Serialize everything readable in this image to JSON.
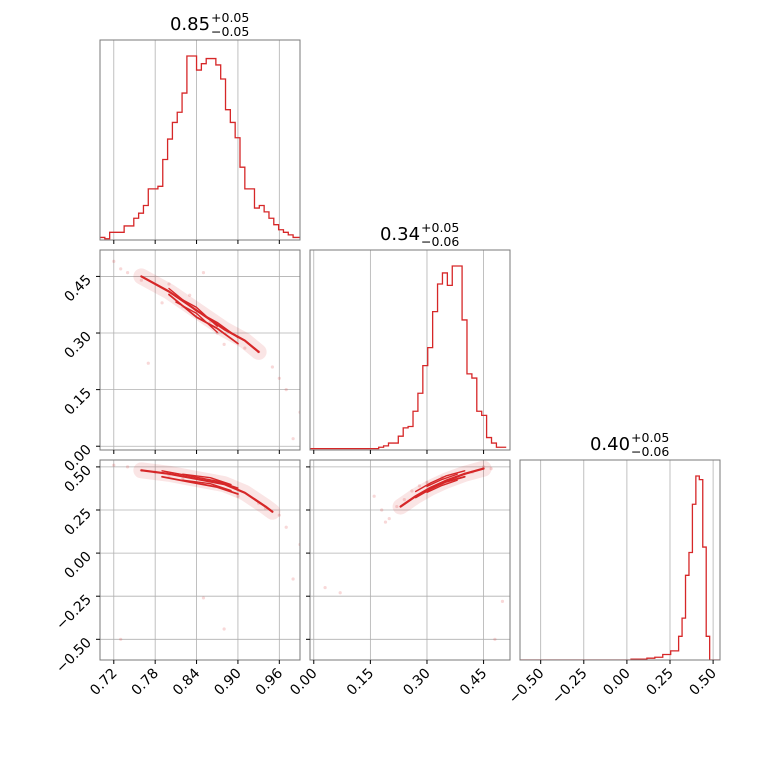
{
  "chart_data": {
    "type": "corner",
    "color": "#d62728",
    "grid": true,
    "parameters": [
      "",
      "",
      ""
    ],
    "titles": [
      {
        "value": "0.85",
        "plus": "+0.05",
        "minus": "−0.05"
      },
      {
        "value": "0.34",
        "plus": "+0.05",
        "minus": "−0.06"
      },
      {
        "value": "0.40",
        "plus": "+0.05",
        "minus": "−0.06"
      }
    ],
    "ranges": [
      [
        0.7,
        0.99
      ],
      [
        -0.01,
        0.52
      ],
      [
        -0.62,
        0.54
      ]
    ],
    "ticks": [
      [
        0.72,
        0.78,
        0.84,
        0.9,
        0.96
      ],
      [
        0.0,
        0.15,
        0.3,
        0.45
      ],
      [
        -0.5,
        -0.25,
        0.0,
        0.25,
        0.5
      ]
    ],
    "tick_labels": [
      [
        "0.72",
        "0.78",
        "0.84",
        "0.90",
        "0.96"
      ],
      [
        "0.00",
        "0.15",
        "0.30",
        "0.45"
      ],
      [
        "−0.50",
        "−0.25",
        "0.00",
        "0.25",
        "0.50"
      ]
    ],
    "histograms": [
      {
        "bin_edges": [
          0.7,
          0.707,
          0.714,
          0.721,
          0.728,
          0.735,
          0.742,
          0.749,
          0.756,
          0.763,
          0.77,
          0.777,
          0.784,
          0.791,
          0.798,
          0.805,
          0.812,
          0.819,
          0.826,
          0.833,
          0.84,
          0.847,
          0.854,
          0.861,
          0.868,
          0.875,
          0.882,
          0.889,
          0.896,
          0.903,
          0.91,
          0.917,
          0.924,
          0.931,
          0.938,
          0.945,
          0.952,
          0.959,
          0.966,
          0.973,
          0.98,
          0.99
        ],
        "counts": [
          2,
          1,
          6,
          6,
          6,
          11,
          11,
          17,
          21,
          27,
          40,
          40,
          42,
          63,
          79,
          92,
          100,
          115,
          144,
          144,
          133,
          138,
          142,
          142,
          137,
          126,
          102,
          92,
          80,
          57,
          40,
          40,
          25,
          27,
          22,
          17,
          12,
          8,
          6,
          4,
          2
        ]
      },
      {
        "bin_edges": [
          -0.01,
          0.003,
          0.016,
          0.029,
          0.042,
          0.055,
          0.068,
          0.081,
          0.094,
          0.107,
          0.12,
          0.133,
          0.146,
          0.159,
          0.172,
          0.185,
          0.198,
          0.211,
          0.224,
          0.237,
          0.25,
          0.263,
          0.276,
          0.289,
          0.302,
          0.315,
          0.328,
          0.341,
          0.354,
          0.367,
          0.38,
          0.393,
          0.406,
          0.419,
          0.432,
          0.445,
          0.458,
          0.471,
          0.484,
          0.497,
          0.51
        ],
        "counts": [
          1,
          1,
          1,
          1,
          1,
          1,
          1,
          1,
          1,
          1,
          1,
          1,
          1,
          1,
          2,
          3,
          5,
          5,
          10,
          16,
          17,
          28,
          41,
          61,
          74,
          100,
          120,
          128,
          119,
          133,
          133,
          94,
          55,
          52,
          28,
          25,
          9,
          5,
          2,
          2
        ]
      },
      {
        "bin_edges": [
          -0.62,
          -0.574,
          -0.528,
          -0.482,
          -0.436,
          -0.39,
          -0.344,
          -0.298,
          -0.252,
          -0.206,
          -0.16,
          -0.114,
          -0.068,
          -0.022,
          0.024,
          0.07,
          0.116,
          0.162,
          0.208,
          0.254,
          0.3,
          0.32,
          0.34,
          0.36,
          0.38,
          0.4,
          0.42,
          0.44,
          0.46,
          0.48,
          0.5,
          0.52,
          0.54
        ],
        "counts": [
          0,
          0,
          0,
          0,
          0,
          0,
          0,
          0,
          0,
          0,
          0,
          0,
          0,
          0,
          1,
          1,
          2,
          3,
          6,
          10,
          26,
          46,
          93,
          118,
          171,
          202,
          198,
          124,
          26,
          0,
          0,
          0
        ]
      }
    ],
    "scatter_points": [
      {
        "pair": [
          0,
          1
        ],
        "points": [
          [
            0.72,
            0.49
          ],
          [
            0.73,
            0.47
          ],
          [
            0.76,
            0.44
          ],
          [
            0.77,
            0.22
          ],
          [
            0.8,
            0.43
          ],
          [
            0.82,
            0.37
          ],
          [
            0.83,
            0.4
          ],
          [
            0.85,
            0.46
          ],
          [
            0.86,
            0.33
          ],
          [
            0.88,
            0.27
          ],
          [
            0.91,
            0.26
          ],
          [
            0.93,
            0.25
          ],
          [
            0.95,
            0.21
          ],
          [
            0.96,
            0.18
          ],
          [
            0.97,
            0.15
          ],
          [
            0.98,
            0.02
          ],
          [
            0.99,
            0.09
          ],
          [
            0.74,
            0.46
          ],
          [
            0.79,
            0.38
          ],
          [
            0.87,
            0.3
          ]
        ]
      },
      {
        "pair": [
          0,
          2
        ],
        "points": [
          [
            0.72,
            0.51
          ],
          [
            0.74,
            0.5
          ],
          [
            0.76,
            0.48
          ],
          [
            0.78,
            0.47
          ],
          [
            0.8,
            0.45
          ],
          [
            0.85,
            -0.26
          ],
          [
            0.88,
            -0.44
          ],
          [
            0.9,
            0.33
          ],
          [
            0.93,
            0.29
          ],
          [
            0.96,
            0.22
          ],
          [
            0.97,
            0.15
          ],
          [
            0.98,
            -0.15
          ],
          [
            0.99,
            0.05
          ],
          [
            0.73,
            -0.5
          ],
          [
            0.94,
            0.26
          ],
          [
            0.82,
            0.43
          ]
        ]
      },
      {
        "pair": [
          1,
          2
        ],
        "points": [
          [
            0.03,
            -0.2
          ],
          [
            0.07,
            -0.23
          ],
          [
            0.16,
            0.33
          ],
          [
            0.18,
            0.25
          ],
          [
            0.19,
            0.18
          ],
          [
            0.2,
            0.2
          ],
          [
            0.22,
            0.27
          ],
          [
            0.24,
            0.31
          ],
          [
            0.26,
            0.36
          ],
          [
            0.28,
            0.39
          ],
          [
            0.45,
            0.5
          ],
          [
            0.47,
            0.49
          ],
          [
            0.48,
            -0.5
          ],
          [
            0.5,
            -0.28
          ],
          [
            0.42,
            0.47
          ],
          [
            0.4,
            0.46
          ],
          [
            0.34,
            0.44
          ],
          [
            0.3,
            0.41
          ]
        ]
      }
    ],
    "contour_ridges": [
      {
        "pair": [
          0,
          1
        ],
        "lines": [
          [
            [
              0.76,
              0.45
            ],
            [
              0.8,
              0.41
            ],
            [
              0.84,
              0.36
            ],
            [
              0.88,
              0.31
            ],
            [
              0.91,
              0.28
            ],
            [
              0.93,
              0.25
            ]
          ],
          [
            [
              0.8,
              0.41
            ],
            [
              0.84,
              0.35
            ],
            [
              0.87,
              0.32
            ],
            [
              0.9,
              0.28
            ]
          ],
          [
            [
              0.81,
              0.39
            ],
            [
              0.84,
              0.36
            ],
            [
              0.87,
              0.31
            ]
          ]
        ]
      },
      {
        "pair": [
          0,
          2
        ],
        "lines": [
          [
            [
              0.76,
              0.48
            ],
            [
              0.8,
              0.46
            ],
            [
              0.84,
              0.43
            ],
            [
              0.88,
              0.4
            ],
            [
              0.91,
              0.35
            ],
            [
              0.94,
              0.27
            ],
            [
              0.95,
              0.24
            ]
          ],
          [
            [
              0.79,
              0.46
            ],
            [
              0.83,
              0.43
            ],
            [
              0.87,
              0.4
            ],
            [
              0.9,
              0.36
            ]
          ],
          [
            [
              0.82,
              0.44
            ],
            [
              0.86,
              0.42
            ],
            [
              0.89,
              0.38
            ]
          ]
        ]
      },
      {
        "pair": [
          1,
          2
        ],
        "lines": [
          [
            [
              0.23,
              0.27
            ],
            [
              0.27,
              0.33
            ],
            [
              0.31,
              0.38
            ],
            [
              0.35,
              0.42
            ],
            [
              0.4,
              0.46
            ],
            [
              0.45,
              0.49
            ]
          ],
          [
            [
              0.27,
              0.34
            ],
            [
              0.31,
              0.39
            ],
            [
              0.35,
              0.43
            ],
            [
              0.4,
              0.46
            ]
          ],
          [
            [
              0.3,
              0.37
            ],
            [
              0.34,
              0.41
            ],
            [
              0.38,
              0.44
            ]
          ]
        ]
      }
    ]
  }
}
